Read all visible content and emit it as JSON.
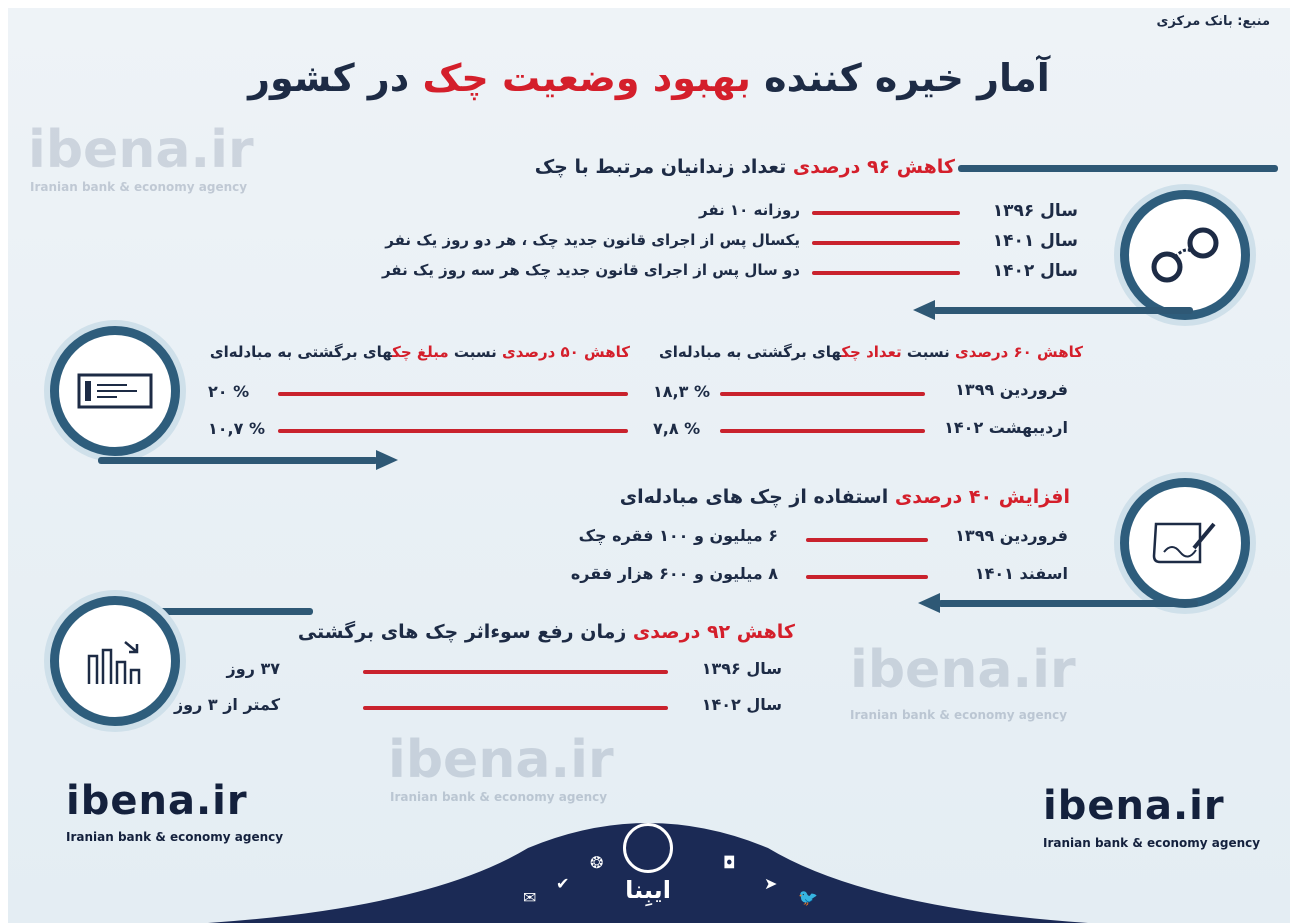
{
  "source": "منبع: بانک مرکزی",
  "title": {
    "part1": "آمار خیره کننده ",
    "highlight": "بهبود وضعیت چک",
    "part2": " در کشور"
  },
  "section1": {
    "title_red": "کاهش ۹۶ درصدی ",
    "title": "تعداد زندانیان مرتبط با چک",
    "icon": "handcuffs-icon",
    "rows": [
      {
        "label": "سال ۱۳۹۶",
        "value": "روزانه ۱۰ نفر"
      },
      {
        "label": "سال ۱۴۰۱",
        "value": "یکسال پس از اجرای قانون جدید چک ، هر دو روز یک نفر"
      },
      {
        "label": "سال ۱۴۰۲",
        "value": "دو سال پس از اجرای قانون جدید چک هر سه روز یک نفر"
      }
    ]
  },
  "section2": {
    "icon": "check-icon",
    "header_count": {
      "red": "کاهش ۶۰ درصدی",
      "mid": " نسبت ",
      "red2": "تعداد چک",
      "end": "های برگشتی به مبادله‌ای"
    },
    "header_amount": {
      "red": "کاهش ۵۰ درصدی",
      "mid": " نسبت ",
      "red2": "مبلغ چک",
      "end": "های برگشتی به مبادله‌ای"
    },
    "rows": [
      {
        "label": "فروردین ۱۳۹۹",
        "count": "۱۸,۳ %",
        "amount": "۲۰ %"
      },
      {
        "label": "اردیبهشت ۱۴۰۲",
        "count": "۷,۸ %",
        "amount": "۱۰,۷ %"
      }
    ]
  },
  "section3": {
    "title_red": "افزایش ۴۰ درصدی ",
    "title": "استفاده از چک های مبادله‌ای",
    "icon": "signing-document-icon",
    "rows": [
      {
        "label": "فروردین ۱۳۹۹",
        "value": "۶ میلیون و ۱۰۰ فقره چک"
      },
      {
        "label": "اسفند ۱۴۰۱",
        "value": "۸ میلیون و ۶۰۰ هزار فقره"
      }
    ]
  },
  "section4": {
    "title_red": "کاهش ۹۲ درصدی ",
    "title": "زمان رفع سوءاثر چک های برگشتی",
    "icon": "bar-chart-down-icon",
    "rows": [
      {
        "label": "سال ۱۳۹۶",
        "value": "۳۷ روز"
      },
      {
        "label": "سال ۱۴۰۲",
        "value": "کمتر از ۳ روز"
      }
    ]
  },
  "watermark": {
    "name": "ibena.ir",
    "tagline": "Iranian bank & economy agency"
  },
  "footer": {
    "logo_text": "ایبِنا",
    "icons": [
      "email-icon",
      "verified-icon",
      "aparat-icon",
      "podcast-icon",
      "instagram-icon",
      "telegram-icon",
      "twitter-icon"
    ]
  },
  "colors": {
    "navy": "#1d2b45",
    "red": "#d41f2b",
    "accent": "#2e5d7c",
    "background": "#e8f0f5"
  }
}
